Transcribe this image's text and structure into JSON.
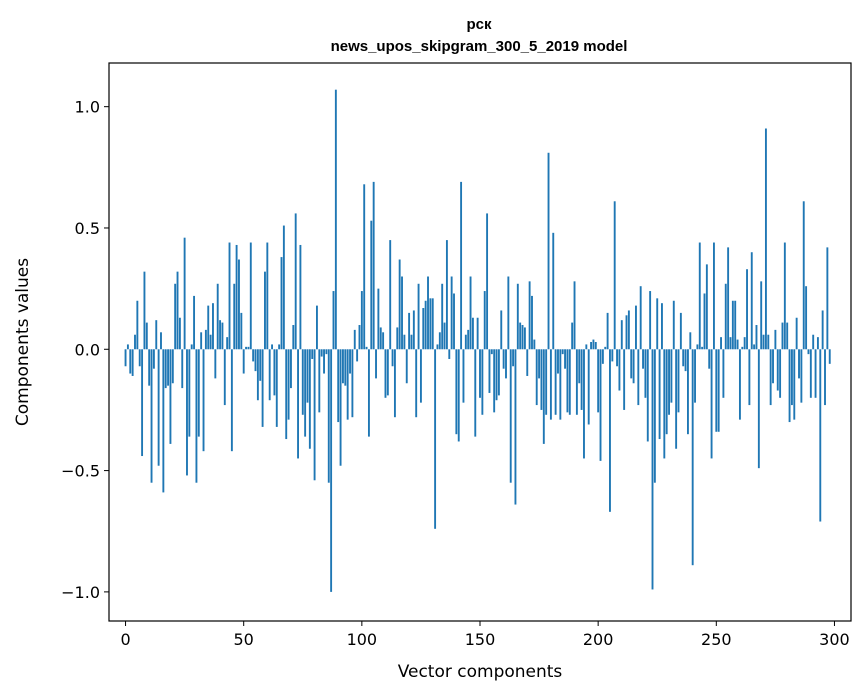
{
  "chart_data": {
    "type": "bar",
    "title_line1": "рск",
    "title_line2": "news_upos_skipgram_300_5_2019 model",
    "xlabel": "Vector components",
    "ylabel": "Components values",
    "xlim": [
      -7,
      307
    ],
    "ylim": [
      -1.12,
      1.18
    ],
    "xticks": [
      0,
      50,
      100,
      150,
      200,
      250,
      300
    ],
    "xtick_labels": [
      "0",
      "50",
      "100",
      "150",
      "200",
      "250",
      "300"
    ],
    "yticks": [
      -1.0,
      -0.5,
      0.0,
      0.5,
      1.0
    ],
    "ytick_labels": [
      "−1.0",
      "−0.5",
      "0.0",
      "0.5",
      "1.0"
    ],
    "bar_color": "#1f77b4",
    "values": [
      -0.07,
      0.02,
      -0.1,
      -0.11,
      0.06,
      0.2,
      -0.07,
      -0.44,
      0.32,
      0.11,
      -0.15,
      -0.55,
      -0.08,
      0.12,
      -0.48,
      0.07,
      -0.59,
      -0.16,
      -0.15,
      -0.39,
      -0.14,
      0.27,
      0.32,
      0.13,
      -0.16,
      0.46,
      -0.52,
      -0.36,
      0.02,
      0.22,
      -0.55,
      -0.36,
      0.07,
      -0.42,
      0.08,
      0.18,
      0.06,
      0.19,
      -0.12,
      0.27,
      0.12,
      0.11,
      -0.23,
      0.05,
      0.44,
      -0.42,
      0.27,
      0.43,
      0.37,
      0.15,
      -0.1,
      0.01,
      0.01,
      0.44,
      -0.05,
      -0.09,
      -0.21,
      -0.13,
      -0.32,
      0.32,
      0.44,
      -0.21,
      0.02,
      -0.19,
      -0.32,
      0.02,
      0.38,
      0.51,
      -0.37,
      -0.29,
      -0.16,
      0.1,
      0.56,
      -0.45,
      0.43,
      -0.27,
      -0.36,
      -0.22,
      -0.41,
      -0.04,
      -0.54,
      0.18,
      -0.26,
      -0.03,
      -0.1,
      -0.02,
      -0.55,
      -1.0,
      0.24,
      1.07,
      -0.3,
      -0.48,
      -0.14,
      -0.15,
      -0.29,
      -0.1,
      -0.28,
      0.08,
      -0.05,
      0.1,
      0.24,
      0.68,
      0.01,
      -0.36,
      0.53,
      0.69,
      -0.12,
      0.25,
      0.09,
      0.07,
      -0.2,
      -0.19,
      0.45,
      -0.07,
      -0.28,
      0.09,
      0.37,
      0.3,
      0.06,
      -0.14,
      0.15,
      0.06,
      0.16,
      -0.28,
      0.27,
      -0.22,
      0.17,
      0.2,
      0.3,
      0.21,
      0.21,
      -0.74,
      0.02,
      0.07,
      0.27,
      0.11,
      0.45,
      -0.04,
      0.3,
      0.23,
      -0.35,
      -0.38,
      0.69,
      -0.22,
      0.06,
      0.08,
      0.3,
      0.13,
      -0.36,
      0.13,
      -0.2,
      -0.27,
      0.24,
      0.56,
      -0.18,
      -0.02,
      -0.26,
      -0.21,
      -0.19,
      0.16,
      -0.08,
      -0.12,
      0.3,
      -0.55,
      -0.07,
      -0.64,
      0.27,
      0.11,
      0.1,
      0.09,
      -0.11,
      0.28,
      0.22,
      0.04,
      -0.23,
      -0.12,
      -0.25,
      -0.39,
      -0.27,
      0.81,
      -0.29,
      0.48,
      -0.27,
      -0.1,
      -0.29,
      -0.02,
      -0.08,
      -0.26,
      -0.27,
      0.11,
      0.28,
      -0.27,
      -0.14,
      -0.25,
      -0.45,
      0.02,
      -0.31,
      0.03,
      0.04,
      0.03,
      -0.26,
      -0.46,
      -0.06,
      0.01,
      0.15,
      -0.67,
      -0.05,
      0.61,
      -0.07,
      -0.17,
      0.12,
      -0.25,
      0.14,
      0.16,
      -0.12,
      -0.14,
      0.18,
      -0.23,
      0.26,
      -0.08,
      -0.2,
      -0.38,
      0.24,
      -0.99,
      -0.55,
      0.21,
      -0.37,
      0.19,
      -0.45,
      -0.35,
      -0.27,
      -0.22,
      0.2,
      -0.41,
      -0.26,
      0.15,
      -0.07,
      -0.09,
      -0.35,
      0.07,
      -0.89,
      -0.22,
      0.02,
      0.44,
      0.01,
      0.23,
      0.35,
      -0.08,
      -0.45,
      0.44,
      -0.34,
      -0.34,
      0.05,
      -0.2,
      0.27,
      0.42,
      0.05,
      0.2,
      0.2,
      0.04,
      -0.29,
      0.01,
      0.05,
      0.33,
      -0.23,
      0.4,
      0.02,
      0.1,
      -0.49,
      0.28,
      0.06,
      0.91,
      0.06,
      -0.23,
      -0.14,
      0.08,
      -0.17,
      -0.2,
      0.11,
      0.44,
      0.11,
      -0.3,
      -0.23,
      -0.29,
      0.13,
      -0.12,
      -0.22,
      0.61,
      0.26,
      -0.02,
      -0.2,
      0.06,
      -0.2,
      0.05,
      -0.71,
      0.16,
      -0.23,
      0.42,
      -0.06
    ]
  }
}
